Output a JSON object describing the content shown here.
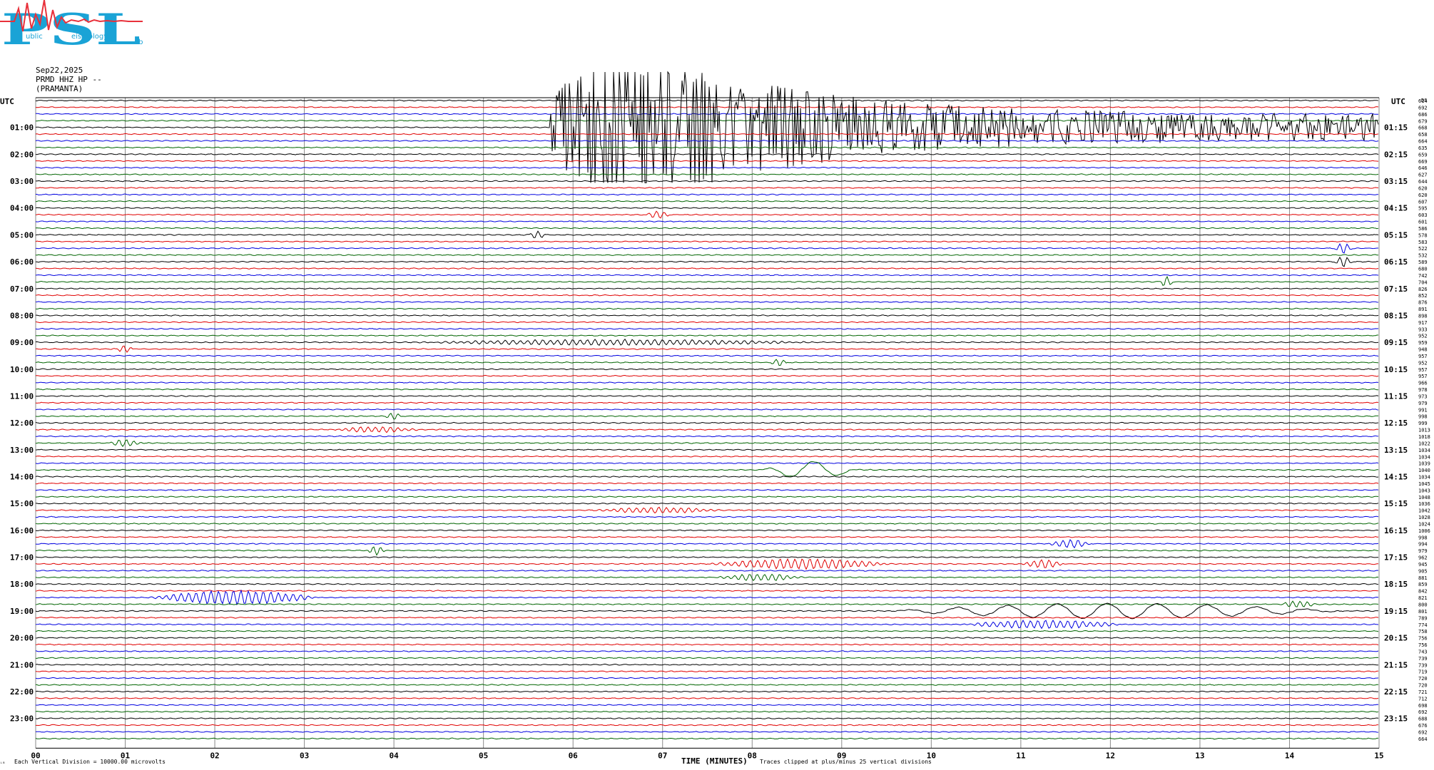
{
  "logo": {
    "letters": "PSL",
    "words": [
      "ublic",
      "eismology",
      "ab"
    ],
    "colors": {
      "text": "#1aa3d6",
      "seismogram": "#e8303a"
    }
  },
  "header": {
    "date": "Sep22,2025",
    "station": "PRMD HHZ HP --",
    "location": "(PRAMANTA)"
  },
  "axis": {
    "left_title": "UTC",
    "right_title": "UTC",
    "x_label": "TIME (MINUTES)",
    "footnote_left": "Each Vertical Division = 10000.00 microvolts",
    "footnote_right": "Traces clipped at plus/minus 25 vertical divisions",
    "corner_mark": "DS"
  },
  "colors": {
    "trace_cycle": [
      "#000000",
      "#e00000",
      "#0000e0",
      "#006400"
    ],
    "grid": "#8a8a8a"
  },
  "chart_data": {
    "type": "line",
    "title": "",
    "xlabel": "TIME (MINUTES)",
    "xlim": [
      0,
      15
    ],
    "x_ticks": [
      "00",
      "01",
      "02",
      "03",
      "04",
      "05",
      "06",
      "07",
      "08",
      "09",
      "10",
      "11",
      "12",
      "13",
      "14",
      "15"
    ],
    "left_labels": [
      "01:00",
      "02:00",
      "03:00",
      "04:00",
      "05:00",
      "06:00",
      "07:00",
      "08:00",
      "09:00",
      "10:00",
      "11:00",
      "12:00",
      "13:00",
      "14:00",
      "15:00",
      "16:00",
      "17:00",
      "18:00",
      "19:00",
      "20:00",
      "21:00",
      "22:00",
      "23:00"
    ],
    "right_labels": [
      "01:15",
      "02:15",
      "03:15",
      "04:15",
      "05:15",
      "06:15",
      "07:15",
      "08:15",
      "09:15",
      "10:15",
      "11:15",
      "12:15",
      "13:15",
      "14:15",
      "15:15",
      "16:15",
      "17:15",
      "18:15",
      "19:15",
      "20:15",
      "21:15",
      "22:15",
      "23:15"
    ],
    "rows_per_hour": 4,
    "trace_means": [
      "614",
      "692",
      "686",
      "679",
      "668",
      "658",
      "664",
      "635",
      "659",
      "669",
      "646",
      "627",
      "644",
      "620",
      "620",
      "607",
      "595",
      "603",
      "601",
      "586",
      "578",
      "583",
      "522",
      "532",
      "589",
      "680",
      "742",
      "704",
      "826",
      "852",
      "876",
      "891",
      "898",
      "917",
      "933",
      "952",
      "959",
      "948",
      "957",
      "952",
      "957",
      "957",
      "966",
      "978",
      "973",
      "979",
      "991",
      "998",
      "999",
      "1013",
      "1018",
      "1022",
      "1034",
      "1034",
      "1039",
      "1040",
      "1034",
      "1045",
      "1043",
      "1048",
      "1036",
      "1042",
      "1028",
      "1024",
      "1006",
      "998",
      "994",
      "979",
      "962",
      "945",
      "905",
      "881",
      "859",
      "842",
      "821",
      "800",
      "801",
      "789",
      "774",
      "758",
      "756",
      "756",
      "743",
      "739",
      "739",
      "719",
      "720",
      "720",
      "721",
      "712",
      "698",
      "692",
      "688",
      "676",
      "692",
      "664"
    ],
    "events": [
      {
        "row": 4,
        "start_min": 5.75,
        "end_min": 15.0,
        "peak_min": 6.7,
        "amplitude_div": 25,
        "clipped": true
      },
      {
        "row": 17,
        "start_min": 6.8,
        "end_min": 7.1,
        "amplitude_div": 1
      },
      {
        "row": 20,
        "start_min": 5.5,
        "end_min": 5.7,
        "amplitude_div": 1
      },
      {
        "row": 22,
        "start_min": 14.5,
        "end_min": 14.7,
        "amplitude_div": 1.5
      },
      {
        "row": 24,
        "start_min": 14.5,
        "end_min": 14.7,
        "amplitude_div": 1.5
      },
      {
        "row": 27,
        "start_min": 12.55,
        "end_min": 12.7,
        "amplitude_div": 1.5
      },
      {
        "row": 36,
        "start_min": 4.2,
        "end_min": 8.8,
        "amplitude_div": 0.8
      },
      {
        "row": 37,
        "start_min": 0.9,
        "end_min": 1.1,
        "amplitude_div": 1
      },
      {
        "row": 39,
        "start_min": 8.2,
        "end_min": 8.4,
        "amplitude_div": 1
      },
      {
        "row": 47,
        "start_min": 3.9,
        "end_min": 4.1,
        "amplitude_div": 1
      },
      {
        "row": 49,
        "start_min": 3.3,
        "end_min": 4.3,
        "amplitude_div": 0.8
      },
      {
        "row": 51,
        "start_min": 0.8,
        "end_min": 1.2,
        "amplitude_div": 1
      },
      {
        "row": 55,
        "start_min": 8.1,
        "end_min": 9.2,
        "amplitude_div": 2.5
      },
      {
        "row": 61,
        "start_min": 6.2,
        "end_min": 7.7,
        "amplitude_div": 0.8
      },
      {
        "row": 66,
        "start_min": 11.3,
        "end_min": 11.8,
        "amplitude_div": 1.2
      },
      {
        "row": 67,
        "start_min": 3.7,
        "end_min": 3.9,
        "amplitude_div": 1.5
      },
      {
        "row": 69,
        "start_min": 7.5,
        "end_min": 9.6,
        "amplitude_div": 1.5
      },
      {
        "row": 69,
        "start_min": 11.0,
        "end_min": 11.5,
        "amplitude_div": 1.2
      },
      {
        "row": 71,
        "start_min": 7.6,
        "end_min": 8.6,
        "amplitude_div": 1
      },
      {
        "row": 74,
        "start_min": 1.25,
        "end_min": 3.2,
        "amplitude_div": 2
      },
      {
        "row": 76,
        "start_min": 9.5,
        "end_min": 14.6,
        "amplitude_div": 2.2
      },
      {
        "row": 75,
        "start_min": 13.9,
        "end_min": 14.3,
        "amplitude_div": 1
      },
      {
        "row": 78,
        "start_min": 10.3,
        "end_min": 12.2,
        "amplitude_div": 1.2
      }
    ]
  }
}
